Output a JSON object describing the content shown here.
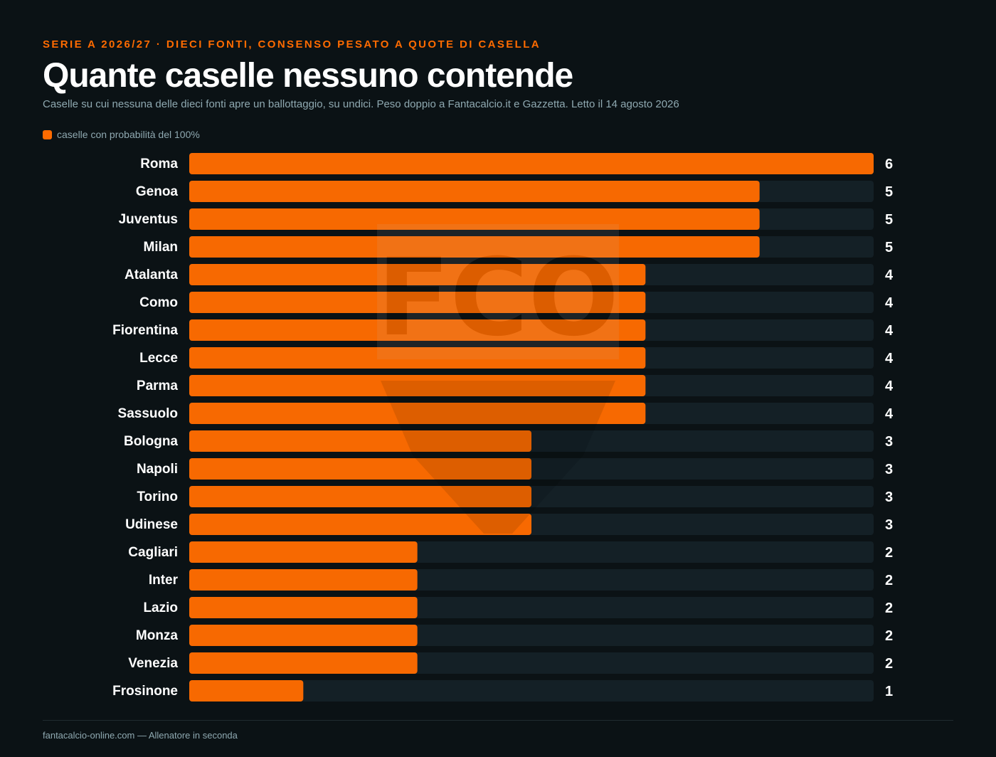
{
  "header": {
    "kicker": "SERIE A 2026/27 · DIECI FONTI, CONSENSO PESATO A QUOTE DI CASELLA",
    "title": "Quante caselle nessuno contende",
    "subtitle": "Caselle su cui nessuna delle dieci fonti apre un ballottaggio, su undici. Peso doppio a Fantacalcio.it e Gazzetta. Letto il 14 agosto 2026"
  },
  "legend": {
    "label": "caselle con probabilità del 100%"
  },
  "watermark": {
    "text": "FCO"
  },
  "colors": {
    "background": "#0b1215",
    "bar": "#ff6b00",
    "track": "#142026",
    "accent": "#ff6b00",
    "muted_text": "#8fa9b1"
  },
  "chart_data": {
    "type": "bar",
    "orientation": "horizontal",
    "categories": [
      "Roma",
      "Genoa",
      "Juventus",
      "Milan",
      "Atalanta",
      "Como",
      "Fiorentina",
      "Lecce",
      "Parma",
      "Sassuolo",
      "Bologna",
      "Napoli",
      "Torino",
      "Udinese",
      "Cagliari",
      "Inter",
      "Lazio",
      "Monza",
      "Venezia",
      "Frosinone"
    ],
    "values": [
      6,
      5,
      5,
      5,
      4,
      4,
      4,
      4,
      4,
      4,
      3,
      3,
      3,
      3,
      2,
      2,
      2,
      2,
      2,
      1
    ],
    "xlim": [
      0,
      6
    ],
    "grid": false,
    "legend": "top-left"
  },
  "footer": {
    "text": "fantacalcio-online.com — Allenatore in seconda"
  }
}
